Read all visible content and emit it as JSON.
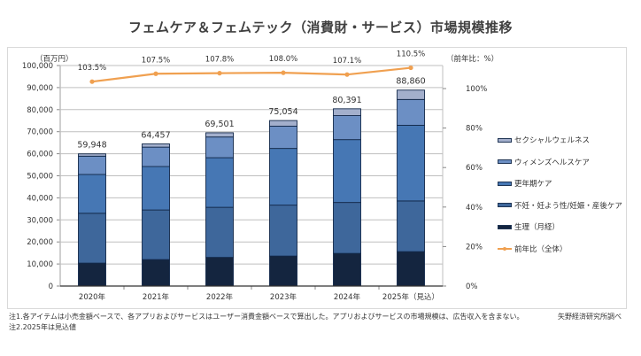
{
  "chart_data": {
    "type": "bar",
    "stacked": true,
    "title": "フェムケア＆フェムテック（消費財・サービス）市場規模推移",
    "categories": [
      "2020年",
      "2021年",
      "2022年",
      "2023年",
      "2024年",
      "2025年（見込）"
    ],
    "y_left": {
      "label": "（百万円）",
      "ylim": [
        0,
        100000
      ],
      "ticks": [
        0,
        10000,
        20000,
        30000,
        40000,
        50000,
        60000,
        70000,
        80000,
        90000,
        100000
      ],
      "tick_labels": [
        "0",
        "10,000",
        "20,000",
        "30,000",
        "40,000",
        "50,000",
        "60,000",
        "70,000",
        "80,000",
        "90,000",
        "100,000"
      ]
    },
    "y_right": {
      "label": "（前年比：%）",
      "ylim": [
        0,
        112
      ],
      "ticks": [
        0,
        20,
        40,
        60,
        80,
        100
      ],
      "tick_labels": [
        "0%",
        "20%",
        "40%",
        "60%",
        "80%",
        "100%"
      ]
    },
    "series": [
      {
        "name": "生理（月経）",
        "color": "#14253f",
        "values": [
          10400,
          12000,
          13000,
          13600,
          14800,
          15600
        ]
      },
      {
        "name": "不妊・妊よう性/妊娠・産後ケア",
        "color": "#3e679b",
        "values": [
          22600,
          22500,
          22700,
          23100,
          23100,
          23000
        ]
      },
      {
        "name": "更年期ケア",
        "color": "#4677b4",
        "values": [
          17600,
          19700,
          22500,
          25700,
          28500,
          34300
        ]
      },
      {
        "name": "ウィメンズヘルスケア",
        "color": "#6c8fc4",
        "values": [
          8300,
          8800,
          9400,
          10100,
          10900,
          11700
        ]
      },
      {
        "name": "セクシャルウェルネス",
        "color": "#a3afcc",
        "values": [
          1048,
          1457,
          1901,
          2554,
          3091,
          4260
        ]
      }
    ],
    "totals": [
      59948,
      64457,
      69501,
      75054,
      80391,
      88860
    ],
    "total_labels": [
      "59,948",
      "64,457",
      "69,501",
      "75,054",
      "80,391",
      "88,860"
    ],
    "line_series": {
      "name": "前年比（全体）",
      "color": "#f0a050",
      "axis": "right",
      "values": [
        103.5,
        107.5,
        107.8,
        108.0,
        107.1,
        110.5
      ],
      "labels": [
        "103.5%",
        "107.5%",
        "107.8%",
        "108.0%",
        "107.1%",
        "110.5%"
      ]
    },
    "legend": {
      "position": "right",
      "items": [
        "セクシャルウェルネス",
        "ウィメンズヘルスケア",
        "更年期ケア",
        "不妊・妊よう性/妊娠・産後ケア",
        "生理（月経）",
        "前年比（全体）"
      ]
    },
    "grid": true
  },
  "notes": [
    "注1.各アイテムは小売金額ベースで、各アプリおよびサービスはユーザー消費金額ベースで算出した。アプリおよびサービスの市場規模は、広告収入を含まない。",
    "注2.2025年は見込値"
  ],
  "source": "矢野経済研究所調べ"
}
